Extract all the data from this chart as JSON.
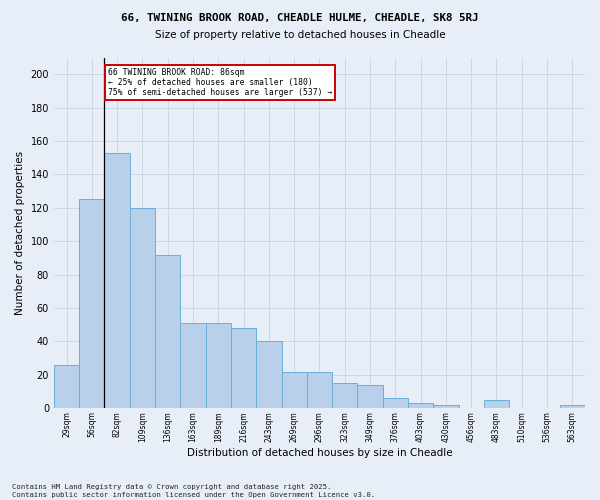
{
  "title1": "66, TWINING BROOK ROAD, CHEADLE HULME, CHEADLE, SK8 5RJ",
  "title2": "Size of property relative to detached houses in Cheadle",
  "xlabel": "Distribution of detached houses by size in Cheadle",
  "ylabel": "Number of detached properties",
  "categories": [
    "29sqm",
    "56sqm",
    "82sqm",
    "109sqm",
    "136sqm",
    "163sqm",
    "189sqm",
    "216sqm",
    "243sqm",
    "269sqm",
    "296sqm",
    "323sqm",
    "349sqm",
    "376sqm",
    "403sqm",
    "430sqm",
    "456sqm",
    "483sqm",
    "510sqm",
    "536sqm",
    "563sqm"
  ],
  "values": [
    26,
    125,
    153,
    120,
    92,
    51,
    51,
    48,
    40,
    22,
    22,
    15,
    14,
    6,
    3,
    2,
    0,
    5,
    0,
    0,
    2
  ],
  "bar_color": "#b8d0ea",
  "bar_edge_color": "#6aaed6",
  "highlight_bar_idx": 2,
  "annotation_line1": "66 TWINING BROOK ROAD: 86sqm",
  "annotation_line2": "← 25% of detached houses are smaller (180)",
  "annotation_line3": "75% of semi-detached houses are larger (537) →",
  "annotation_box_color": "#ffffff",
  "annotation_box_edge": "#cc0000",
  "grid_color": "#c8d4e0",
  "bg_color": "#e8eef8",
  "footer": "Contains HM Land Registry data © Crown copyright and database right 2025.\nContains public sector information licensed under the Open Government Licence v3.0.",
  "ylim": [
    0,
    210
  ],
  "yticks": [
    0,
    20,
    40,
    60,
    80,
    100,
    120,
    140,
    160,
    180,
    200
  ]
}
